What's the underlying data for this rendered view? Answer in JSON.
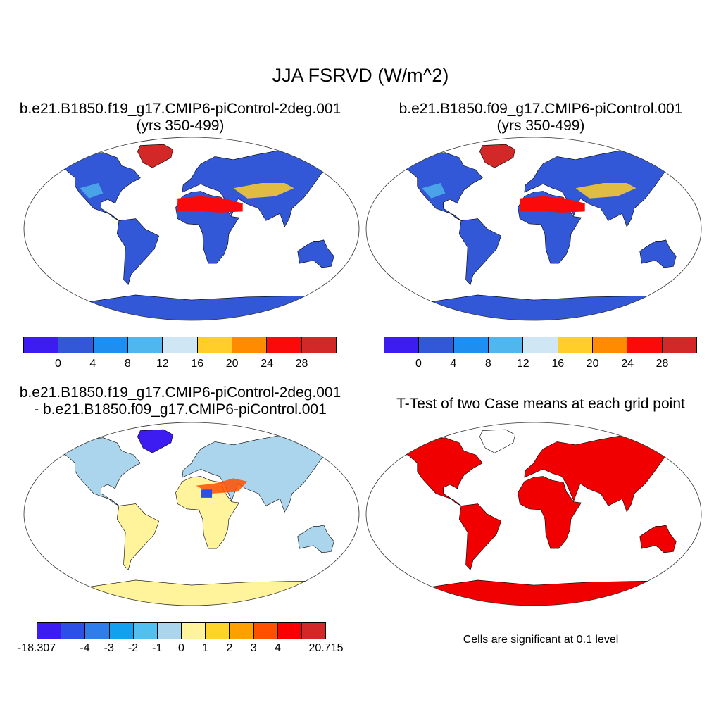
{
  "title": "JJA FSRVD (W/m^2)",
  "panels": [
    {
      "title_line1": "b.e21.B1850.f19_g17.CMIP6-piControl-2deg.001",
      "title_line2": "(yrs 350-499)"
    },
    {
      "title_line1": "b.e21.B1850.f09_g17.CMIP6-piControl.001",
      "title_line2": "(yrs 350-499)"
    },
    {
      "title_line1": "b.e21.B1850.f19_g17.CMIP6-piControl-2deg.001",
      "title_line2": "- b.e21.B1850.f09_g17.CMIP6-piControl.001"
    },
    {
      "title_line1": "T-Test of two Case means at each grid point",
      "title_line2": ""
    }
  ],
  "colorbar_main": {
    "colors": [
      "#3c1cf0",
      "#3258d8",
      "#1e8ef0",
      "#50b6ee",
      "#cfe6f5",
      "#ffce28",
      "#ff8c00",
      "#fa0a0a",
      "#d22828"
    ],
    "labels": [
      "0",
      "4",
      "8",
      "12",
      "16",
      "20",
      "24",
      "28"
    ]
  },
  "colorbar_diff": {
    "colors": [
      "#3c1cf0",
      "#2c50e6",
      "#2d7ded",
      "#14a0f0",
      "#50c0f0",
      "#aad5ec",
      "#fff49c",
      "#ffd42a",
      "#ffa000",
      "#ff5000",
      "#fa0000",
      "#d22828"
    ],
    "labels": [
      "-18.307",
      "-4",
      "-3",
      "-2",
      "-1",
      "0",
      "1",
      "2",
      "3",
      "4",
      "20.715"
    ]
  },
  "significance_color": "#f00000",
  "note": "Cells are significant at 0.1 level"
}
